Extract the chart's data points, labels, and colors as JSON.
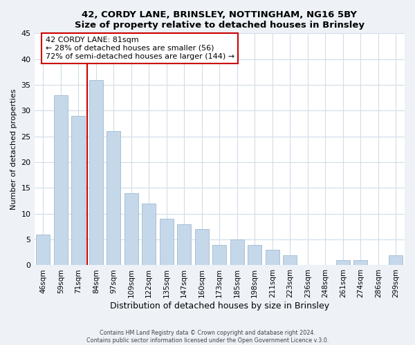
{
  "title": "42, CORDY LANE, BRINSLEY, NOTTINGHAM, NG16 5BY",
  "subtitle": "Size of property relative to detached houses in Brinsley",
  "xlabel": "Distribution of detached houses by size in Brinsley",
  "ylabel": "Number of detached properties",
  "bar_labels": [
    "46sqm",
    "59sqm",
    "71sqm",
    "84sqm",
    "97sqm",
    "109sqm",
    "122sqm",
    "135sqm",
    "147sqm",
    "160sqm",
    "173sqm",
    "185sqm",
    "198sqm",
    "211sqm",
    "223sqm",
    "236sqm",
    "248sqm",
    "261sqm",
    "274sqm",
    "286sqm",
    "299sqm"
  ],
  "bar_values": [
    6,
    33,
    29,
    36,
    26,
    14,
    12,
    9,
    8,
    7,
    4,
    5,
    4,
    3,
    2,
    0,
    0,
    1,
    1,
    0,
    2
  ],
  "bar_color": "#c5d8ea",
  "bar_edge_color": "#a8c0d6",
  "highlight_line_color": "#cc0000",
  "annotation_title": "42 CORDY LANE: 81sqm",
  "annotation_line1": "← 28% of detached houses are smaller (56)",
  "annotation_line2": "72% of semi-detached houses are larger (144) →",
  "annotation_box_color": "#ffffff",
  "annotation_box_edge": "#cc0000",
  "ylim": [
    0,
    45
  ],
  "yticks": [
    0,
    5,
    10,
    15,
    20,
    25,
    30,
    35,
    40,
    45
  ],
  "footer1": "Contains HM Land Registry data © Crown copyright and database right 2024.",
  "footer2": "Contains public sector information licensed under the Open Government Licence v.3.0.",
  "bg_color": "#eef2f7",
  "plot_bg_color": "#ffffff",
  "grid_color": "#d0dce8"
}
